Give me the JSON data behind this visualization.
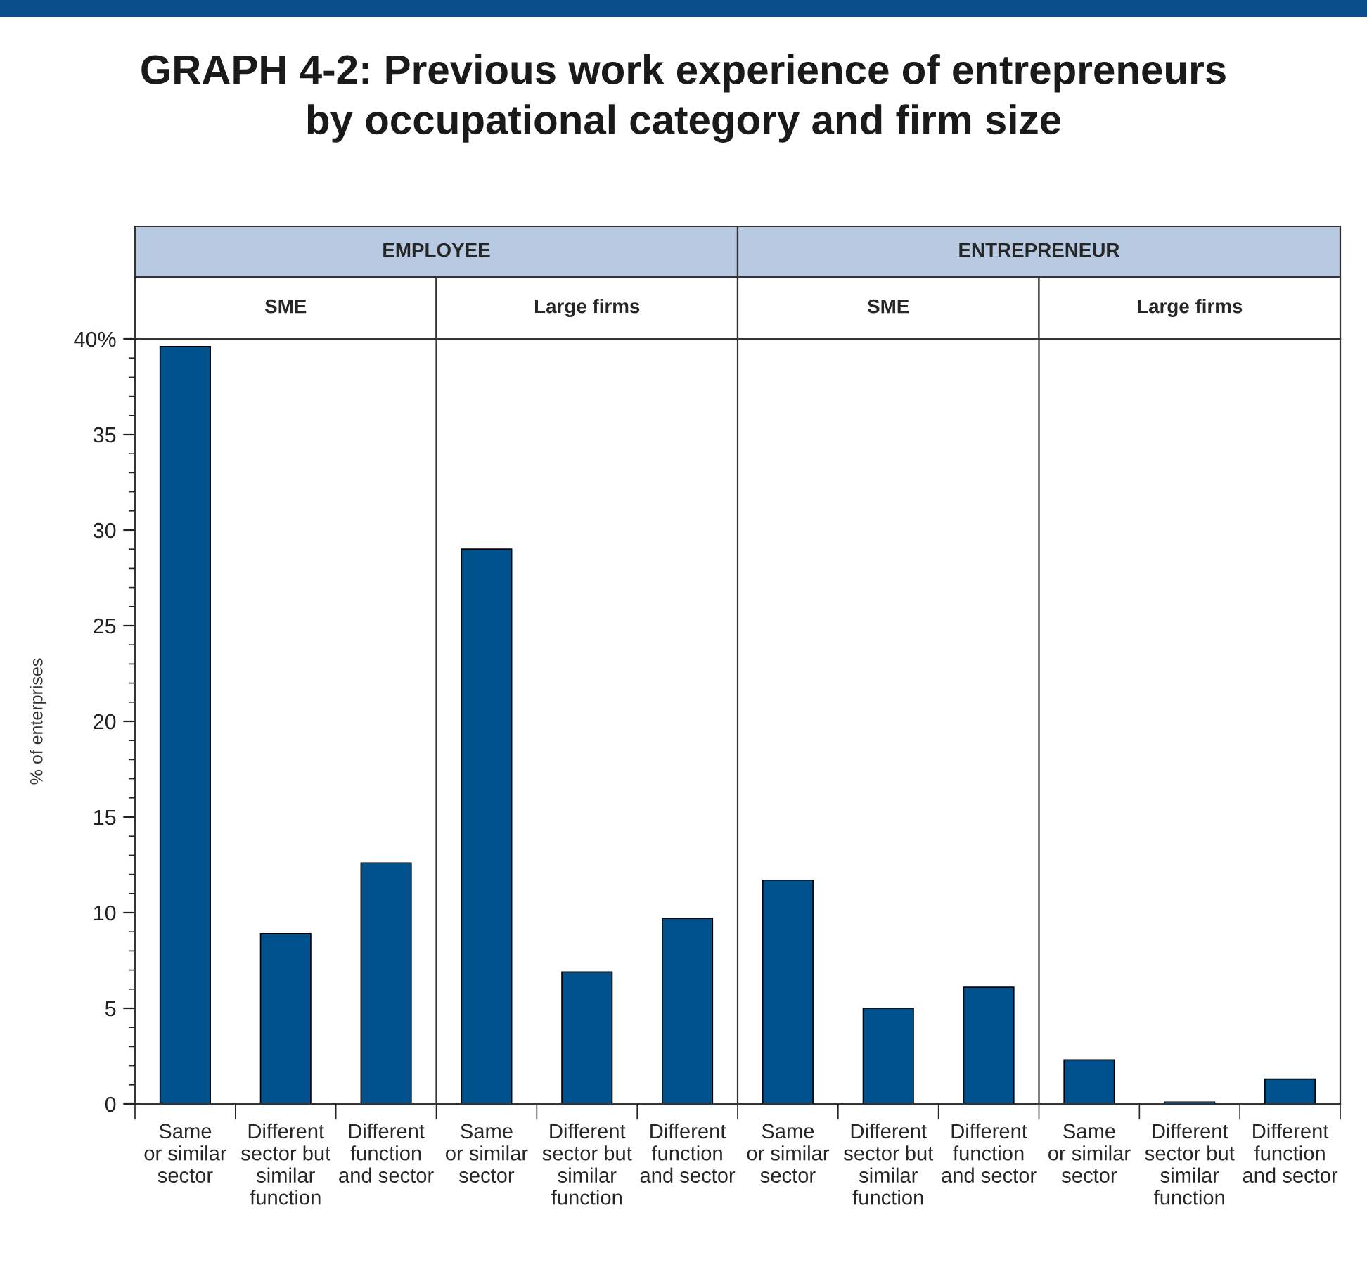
{
  "chart_data": {
    "type": "bar",
    "title": "GRAPH 4-2: Previous work experience of entrepreneurs\nby occupational category and firm size",
    "ylabel": "% of enterprises",
    "categories": [
      "Same\nor similar\nsector",
      "Different\nsector but\nsimilar\nfunction",
      "Different\nfunction\nand sector",
      "Same\nor similar\nsector",
      "Different\nsector but\nsimilar\nfunction",
      "Different\nfunction\nand sector",
      "Same\nor similar\nsector",
      "Different\nsector but\nsimilar\nfunction",
      "Different\nfunction\nand sector",
      "Same\nor similar\nsector",
      "Different\nsector but\nsimilar\nfunction",
      "Different\nfunction\nand sector"
    ],
    "values": [
      39.6,
      8.9,
      12.6,
      29.0,
      6.9,
      9.7,
      11.7,
      5.0,
      6.1,
      2.3,
      0.1,
      1.3
    ],
    "color": "#00528f",
    "ylim": [
      0,
      40
    ],
    "yticks": [
      0,
      5,
      10,
      15,
      20,
      25,
      30,
      35,
      {
        "value": 40,
        "label": "40%"
      }
    ],
    "annotations": [
      "EMPLOYEE",
      "ENTREPRENEUR",
      "SME",
      "Large firms",
      "SME",
      "Large firms"
    ],
    "grid": false
  }
}
